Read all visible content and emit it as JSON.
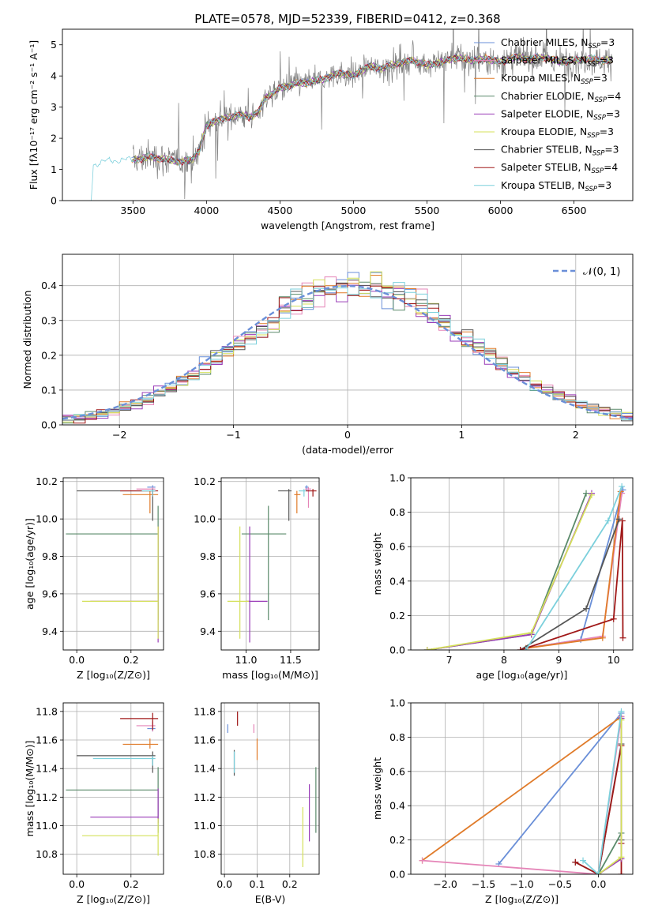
{
  "figure_title": "PLATE=0578, MJD=52339, FIBERID=0412, z=0.368",
  "colors": {
    "Chabrier MILES": "#6a8fd8",
    "Salpeter MILES": "#e585b8",
    "Kroupa MILES": "#e07b2a",
    "Chabrier ELODIE": "#5a8a6a",
    "Salpeter ELODIE": "#9a3cb8",
    "Kroupa ELODIE": "#d4e05a",
    "Chabrier STELIB": "#555555",
    "Salpeter STELIB": "#a01818",
    "Kroupa STELIB": "#7cd0dc",
    "data": "#808080",
    "normal": "#6a8fd8"
  },
  "chart_data": [
    {
      "id": "spectrum",
      "type": "line",
      "title": "PLATE=0578, MJD=52339, FIBERID=0412, z=0.368",
      "xlabel": "wavelength [Angstrom, rest frame]",
      "ylabel": "Flux [fλ10⁻¹⁷ erg cm⁻² s⁻¹ A⁻¹]",
      "xlim": [
        3020,
        6900
      ],
      "ylim": [
        0,
        5.5
      ],
      "xticks": [
        3500,
        4000,
        4500,
        5000,
        5500,
        6000,
        6500
      ],
      "yticks": [
        0,
        1,
        2,
        3,
        4,
        5
      ],
      "grid": false,
      "legend_position": "top-right",
      "continuum": {
        "x": [
          3200,
          3215,
          3230,
          3300,
          3400,
          3500,
          3600,
          3700,
          3800,
          3900,
          3950,
          4000,
          4050,
          4100,
          4200,
          4300,
          4350,
          4400,
          4500,
          4600,
          4700,
          4800,
          4900,
          5000,
          5100,
          5200,
          5300,
          5400,
          5500,
          5600,
          5700,
          5800,
          5900,
          6000,
          6100,
          6200,
          6300,
          6400,
          6500,
          6600,
          6700,
          6760
        ],
        "y": [
          0,
          0,
          1.15,
          1.25,
          1.3,
          1.3,
          1.4,
          1.35,
          1.25,
          1.3,
          1.6,
          2.4,
          2.55,
          2.6,
          2.75,
          2.7,
          2.8,
          3.3,
          3.6,
          3.75,
          3.8,
          3.9,
          4.1,
          4.0,
          4.3,
          4.25,
          4.4,
          4.5,
          4.35,
          4.45,
          4.6,
          4.5,
          4.55,
          4.45,
          4.6,
          4.55,
          4.6,
          4.45,
          4.5,
          4.55,
          4.5,
          4.5
        ]
      },
      "series": [
        {
          "name": "Chabrier MILES, N_SSP=3",
          "label_main": "Chabrier MILES, N",
          "label_sub": "SSP",
          "label_tail": "=3"
        },
        {
          "name": "Salpeter MILES, N_SSP=3",
          "label_main": "Salpeter MILES, N",
          "label_sub": "SSP",
          "label_tail": "=3"
        },
        {
          "name": "Kroupa MILES, N_SSP=3",
          "label_main": "Kroupa MILES, N",
          "label_sub": "SSP",
          "label_tail": "=3"
        },
        {
          "name": "Chabrier ELODIE, N_SSP=4",
          "label_main": "Chabrier ELODIE, N",
          "label_sub": "SSP",
          "label_tail": "=4"
        },
        {
          "name": "Salpeter ELODIE, N_SSP=3",
          "label_main": "Salpeter ELODIE, N",
          "label_sub": "SSP",
          "label_tail": "=3"
        },
        {
          "name": "Kroupa ELODIE, N_SSP=3",
          "label_main": "Kroupa ELODIE, N",
          "label_sub": "SSP",
          "label_tail": "=3"
        },
        {
          "name": "Chabrier STELIB, N_SSP=3",
          "label_main": "Chabrier STELIB, N",
          "label_sub": "SSP",
          "label_tail": "=3"
        },
        {
          "name": "Salpeter STELIB, N_SSP=4",
          "label_main": "Salpeter STELIB, N",
          "label_sub": "SSP",
          "label_tail": "=4"
        },
        {
          "name": "Kroupa STELIB, N_SSP=3",
          "label_main": "Kroupa STELIB, N",
          "label_sub": "SSP",
          "label_tail": "=3"
        }
      ]
    },
    {
      "id": "residuals",
      "type": "histogram",
      "xlabel": "(data-model)/error",
      "ylabel": "Normed distribution",
      "xlim": [
        -2.5,
        2.5
      ],
      "ylim": [
        0,
        0.49
      ],
      "xticks": [
        -2,
        -1,
        0,
        1,
        2
      ],
      "yticks": [
        0.0,
        0.1,
        0.2,
        0.3,
        0.4
      ],
      "grid": true,
      "legend_position": "top-right",
      "normal_label": "𝒩(0, 1)"
    },
    {
      "id": "age_vs_Z",
      "type": "errorbar",
      "xlabel": "Z [log₁₀(Z/Z⊙)]",
      "ylabel": "age  [log₁₀(age/yr)]",
      "xlim": [
        -0.05,
        0.32
      ],
      "ylim": [
        9.3,
        10.22
      ],
      "xticks": [
        0.0,
        0.2
      ],
      "yticks": [
        9.4,
        9.6,
        9.8,
        10.0,
        10.2
      ],
      "points": [
        {
          "model": "Chabrier MILES",
          "x": 0.28,
          "y": 10.17,
          "xerr": [
            0.02,
            0.01
          ],
          "yerr": [
            0.02,
            0.01
          ]
        },
        {
          "model": "Salpeter MILES",
          "x": 0.28,
          "y": 10.16,
          "xerr": [
            0.06,
            0.01
          ],
          "yerr": [
            0.02,
            0.01
          ]
        },
        {
          "model": "Kroupa MILES",
          "x": 0.27,
          "y": 10.13,
          "xerr": [
            0.1,
            0.03
          ],
          "yerr": [
            0.1,
            0.02
          ]
        },
        {
          "model": "Chabrier ELODIE",
          "x": 0.3,
          "y": 9.92,
          "xerr": [
            0.34,
            0.0
          ],
          "yerr": [
            0.46,
            0.15
          ]
        },
        {
          "model": "Salpeter ELODIE",
          "x": 0.3,
          "y": 9.56,
          "xerr": [
            0.25,
            0.0
          ],
          "yerr": [
            0.22,
            0.4
          ]
        },
        {
          "model": "Kroupa ELODIE",
          "x": 0.3,
          "y": 9.56,
          "xerr": [
            0.28,
            0.0
          ],
          "yerr": [
            0.2,
            0.4
          ]
        },
        {
          "model": "Chabrier STELIB",
          "x": 0.28,
          "y": 10.15,
          "xerr": [
            0.28,
            0.01
          ],
          "yerr": [
            0.16,
            0.01
          ]
        },
        {
          "model": "Salpeter STELIB",
          "x": 0.28,
          "y": 10.15,
          "xerr": [
            0.12,
            0.02
          ],
          "yerr": [
            0.03,
            0.01
          ]
        },
        {
          "model": "Kroupa STELIB",
          "x": 0.28,
          "y": 10.15,
          "xerr": [
            0.04,
            0.01
          ],
          "yerr": [
            0.03,
            0.01
          ]
        }
      ]
    },
    {
      "id": "age_vs_mass",
      "type": "errorbar",
      "xlabel": "mass [log₁₀(M/M⊙)]",
      "ylabel": "",
      "xlim": [
        10.72,
        11.82
      ],
      "ylim": [
        9.3,
        10.22
      ],
      "xticks": [
        11.0,
        11.5
      ],
      "yticks": [
        9.4,
        9.6,
        9.8,
        10.0,
        10.2
      ],
      "points": [
        {
          "model": "Chabrier MILES",
          "x": 11.68,
          "y": 10.17,
          "xerr": [
            0.02,
            0.02
          ],
          "yerr": [
            0.02,
            0.01
          ]
        },
        {
          "model": "Salpeter MILES",
          "x": 11.7,
          "y": 10.16,
          "xerr": [
            0.04,
            0.03
          ],
          "yerr": [
            0.1,
            0.01
          ]
        },
        {
          "model": "Kroupa MILES",
          "x": 11.57,
          "y": 10.13,
          "xerr": [
            0.03,
            0.04
          ],
          "yerr": [
            0.1,
            0.02
          ]
        },
        {
          "model": "Chabrier ELODIE",
          "x": 11.25,
          "y": 9.92,
          "xerr": [
            0.3,
            0.2
          ],
          "yerr": [
            0.46,
            0.15
          ]
        },
        {
          "model": "Salpeter ELODIE",
          "x": 11.04,
          "y": 9.56,
          "xerr": [
            0.04,
            0.2
          ],
          "yerr": [
            0.22,
            0.4
          ]
        },
        {
          "model": "Kroupa ELODIE",
          "x": 10.93,
          "y": 9.56,
          "xerr": [
            0.14,
            0.1
          ],
          "yerr": [
            0.2,
            0.4
          ]
        },
        {
          "model": "Chabrier STELIB",
          "x": 11.48,
          "y": 10.15,
          "xerr": [
            0.12,
            0.03
          ],
          "yerr": [
            0.16,
            0.01
          ]
        },
        {
          "model": "Salpeter STELIB",
          "x": 11.75,
          "y": 10.15,
          "xerr": [
            0.08,
            0.04
          ],
          "yerr": [
            0.03,
            0.01
          ]
        },
        {
          "model": "Kroupa STELIB",
          "x": 11.65,
          "y": 10.15,
          "xerr": [
            0.06,
            0.02
          ],
          "yerr": [
            0.03,
            0.01
          ]
        }
      ]
    },
    {
      "id": "weight_vs_age",
      "type": "line",
      "xlabel": "age  [log₁₀(age/yr)]",
      "ylabel": "mass weight",
      "xlim": [
        6.3,
        10.35
      ],
      "ylim": [
        0,
        1.0
      ],
      "xticks": [
        7,
        8,
        9,
        10
      ],
      "yticks": [
        0.0,
        0.2,
        0.4,
        0.6,
        0.8,
        1.0
      ],
      "grid": true,
      "series": [
        {
          "model": "Chabrier MILES",
          "x": [
            8.4,
            9.4,
            10.17
          ],
          "y": [
            0.01,
            0.06,
            0.93
          ]
        },
        {
          "model": "Salpeter MILES",
          "x": [
            8.4,
            9.8,
            10.15
          ],
          "y": [
            0.01,
            0.08,
            0.91
          ]
        },
        {
          "model": "Kroupa MILES",
          "x": [
            8.4,
            9.8,
            10.13
          ],
          "y": [
            0.01,
            0.07,
            0.92
          ]
        },
        {
          "model": "Chabrier ELODIE",
          "x": [
            6.6,
            8.5,
            9.5
          ],
          "y": [
            0.0,
            0.09,
            0.91
          ]
        },
        {
          "model": "Salpeter ELODIE",
          "x": [
            6.6,
            8.5,
            9.6
          ],
          "y": [
            0.0,
            0.09,
            0.91
          ]
        },
        {
          "model": "Kroupa ELODIE",
          "x": [
            6.6,
            8.5,
            9.6
          ],
          "y": [
            0.0,
            0.1,
            0.9
          ]
        },
        {
          "model": "Chabrier STELIB",
          "x": [
            8.3,
            9.5,
            10.1
          ],
          "y": [
            0.0,
            0.24,
            0.76
          ]
        },
        {
          "model": "Salpeter STELIB",
          "x": [
            8.3,
            10.0,
            10.16,
            10.17
          ],
          "y": [
            0.0,
            0.18,
            0.75,
            0.07
          ]
        },
        {
          "model": "Kroupa STELIB",
          "x": [
            8.4,
            9.9,
            10.15
          ],
          "y": [
            0.0,
            0.75,
            0.95
          ]
        }
      ]
    },
    {
      "id": "mass_vs_Z",
      "type": "errorbar",
      "xlabel": "Z [log₁₀(Z/Z⊙)]",
      "ylabel": "mass [log₁₀(M/M⊙)]",
      "xlim": [
        -0.05,
        0.32
      ],
      "ylim": [
        10.66,
        11.86
      ],
      "xticks": [
        0.0,
        0.2
      ],
      "yticks": [
        10.8,
        11.0,
        11.2,
        11.4,
        11.6,
        11.8
      ],
      "points": [
        {
          "model": "Chabrier MILES",
          "x": 0.28,
          "y": 11.68,
          "xerr": [
            0.02,
            0.01
          ],
          "yerr": [
            0.02,
            0.02
          ]
        },
        {
          "model": "Salpeter MILES",
          "x": 0.28,
          "y": 11.7,
          "xerr": [
            0.06,
            0.01
          ],
          "yerr": [
            0.04,
            0.03
          ]
        },
        {
          "model": "Kroupa MILES",
          "x": 0.27,
          "y": 11.57,
          "xerr": [
            0.1,
            0.03
          ],
          "yerr": [
            0.03,
            0.04
          ]
        },
        {
          "model": "Chabrier ELODIE",
          "x": 0.3,
          "y": 11.25,
          "xerr": [
            0.34,
            0.0
          ],
          "yerr": [
            0.3,
            0.16
          ]
        },
        {
          "model": "Salpeter ELODIE",
          "x": 0.3,
          "y": 11.06,
          "xerr": [
            0.25,
            0.0
          ],
          "yerr": [
            0.04,
            0.2
          ]
        },
        {
          "model": "Kroupa ELODIE",
          "x": 0.3,
          "y": 10.93,
          "xerr": [
            0.28,
            0.0
          ],
          "yerr": [
            0.14,
            0.12
          ]
        },
        {
          "model": "Chabrier STELIB",
          "x": 0.28,
          "y": 11.49,
          "xerr": [
            0.28,
            0.01
          ],
          "yerr": [
            0.12,
            0.03
          ]
        },
        {
          "model": "Salpeter STELIB",
          "x": 0.28,
          "y": 11.75,
          "xerr": [
            0.12,
            0.02
          ],
          "yerr": [
            0.08,
            0.04
          ]
        },
        {
          "model": "Kroupa STELIB",
          "x": 0.28,
          "y": 11.47,
          "xerr": [
            0.22,
            0.01
          ],
          "yerr": [
            0.05,
            0.02
          ]
        }
      ]
    },
    {
      "id": "mass_vs_ebv",
      "type": "errorbar",
      "xlabel": "E(B-V)",
      "ylabel": "",
      "xlim": [
        -0.01,
        0.29
      ],
      "ylim": [
        10.66,
        11.86
      ],
      "xticks": [
        0.0,
        0.1,
        0.2
      ],
      "yticks": [
        10.8,
        11.0,
        11.2,
        11.4,
        11.6,
        11.8
      ],
      "points": [
        {
          "model": "Chabrier MILES",
          "x": 0.01,
          "y": 11.68,
          "xerr": [
            0.0,
            0.0
          ],
          "yerr": [
            0.03,
            0.03
          ]
        },
        {
          "model": "Salpeter MILES",
          "x": 0.09,
          "y": 11.68,
          "xerr": [
            0.0,
            0.0
          ],
          "yerr": [
            0.03,
            0.03
          ]
        },
        {
          "model": "Kroupa MILES",
          "x": 0.1,
          "y": 11.53,
          "xerr": [
            0.0,
            0.0
          ],
          "yerr": [
            0.07,
            0.08
          ]
        },
        {
          "model": "Chabrier ELODIE",
          "x": 0.28,
          "y": 11.25,
          "xerr": [
            0.0,
            0.0
          ],
          "yerr": [
            0.3,
            0.16
          ]
        },
        {
          "model": "Salpeter ELODIE",
          "x": 0.26,
          "y": 11.09,
          "xerr": [
            0.0,
            0.0
          ],
          "yerr": [
            0.2,
            0.2
          ]
        },
        {
          "model": "Kroupa ELODIE",
          "x": 0.24,
          "y": 10.93,
          "xerr": [
            0.0,
            0.0
          ],
          "yerr": [
            0.22,
            0.2
          ]
        },
        {
          "model": "Chabrier STELIB",
          "x": 0.03,
          "y": 11.45,
          "xerr": [
            0.0,
            0.0
          ],
          "yerr": [
            0.1,
            0.08
          ]
        },
        {
          "model": "Salpeter STELIB",
          "x": 0.04,
          "y": 11.75,
          "xerr": [
            0.0,
            0.0
          ],
          "yerr": [
            0.05,
            0.05
          ]
        },
        {
          "model": "Kroupa STELIB",
          "x": 0.03,
          "y": 11.45,
          "xerr": [
            0.0,
            0.0
          ],
          "yerr": [
            0.08,
            0.07
          ]
        }
      ]
    },
    {
      "id": "weight_vs_Z",
      "type": "line",
      "xlabel": "Z [log₁₀(Z/Z⊙)]",
      "ylabel": "mass weight",
      "xlim": [
        -2.45,
        0.45
      ],
      "ylim": [
        0,
        1.0
      ],
      "xticks": [
        -2.0,
        -1.5,
        -1.0,
        -0.5,
        0.0
      ],
      "yticks": [
        0.0,
        0.2,
        0.4,
        0.6,
        0.8,
        1.0
      ],
      "grid": true,
      "series": [
        {
          "model": "Chabrier MILES",
          "x": [
            -1.3,
            0.3
          ],
          "y": [
            0.06,
            0.94
          ]
        },
        {
          "model": "Kroupa MILES",
          "x": [
            -2.3,
            0.3
          ],
          "y": [
            0.08,
            0.92
          ]
        },
        {
          "model": "Salpeter MILES",
          "x": [
            -2.3,
            0.0,
            0.3
          ],
          "y": [
            0.08,
            0.0,
            0.92
          ]
        },
        {
          "model": "Chabrier STELIB",
          "x": [
            -0.3,
            0.0,
            0.3,
            0.3
          ],
          "y": [
            0.07,
            0.0,
            0.76,
            0.2
          ]
        },
        {
          "model": "Salpeter STELIB",
          "x": [
            -0.3,
            0.0,
            0.3,
            0.3,
            0.3
          ],
          "y": [
            0.07,
            0.0,
            0.75,
            0.18,
            0.0
          ]
        },
        {
          "model": "Chabrier ELODIE",
          "x": [
            0.0,
            0.3,
            0.3
          ],
          "y": [
            0.0,
            0.24,
            0.91
          ]
        },
        {
          "model": "Salpeter ELODIE",
          "x": [
            0.0,
            0.3,
            0.3
          ],
          "y": [
            0.0,
            0.09,
            0.91
          ]
        },
        {
          "model": "Kroupa ELODIE",
          "x": [
            0.0,
            0.3,
            0.3
          ],
          "y": [
            0.0,
            0.1,
            0.9
          ]
        },
        {
          "model": "Kroupa STELIB",
          "x": [
            -0.2,
            0.0,
            0.3
          ],
          "y": [
            0.08,
            0.0,
            0.95
          ]
        }
      ]
    }
  ]
}
